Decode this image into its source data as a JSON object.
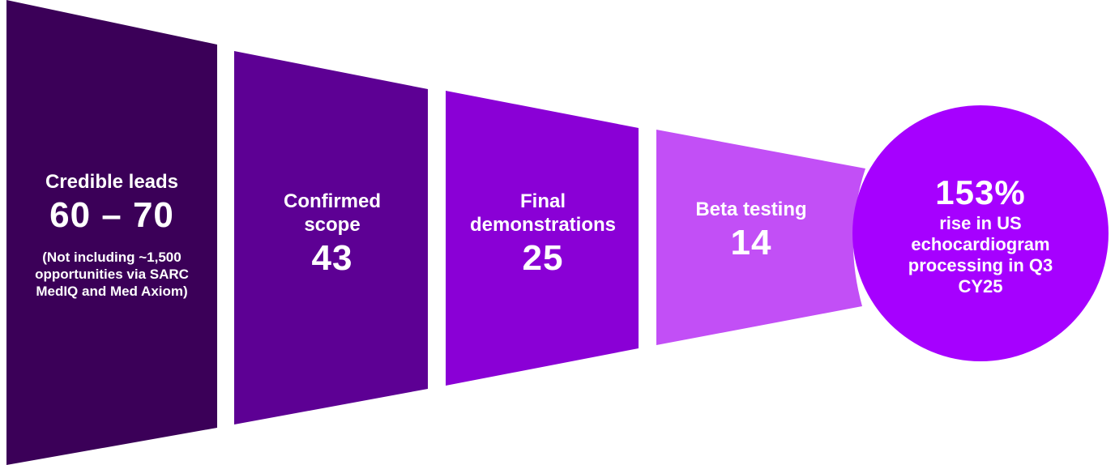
{
  "stages": [
    {
      "label": "Credible leads",
      "value": "60 – 70",
      "note": "(Not including ~1,500 opportunities via SARC MedIQ and Med Axiom)"
    },
    {
      "label": "Confirmed scope",
      "value": "43"
    },
    {
      "label": "Final demonstrations",
      "value": "25"
    },
    {
      "label": "Beta testing",
      "value": "14"
    }
  ],
  "result": {
    "value": "153%",
    "text": "rise in US echocardiogram processing in Q3 CY25"
  }
}
